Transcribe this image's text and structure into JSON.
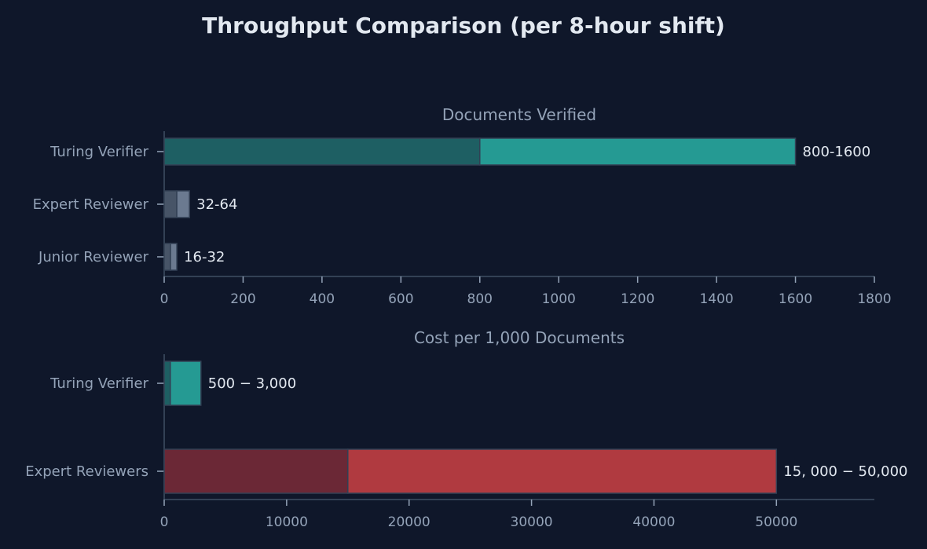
{
  "figure": {
    "title": "Throughput Comparison (per 8-hour shift)",
    "background": "#0f172a"
  },
  "chart_data": [
    {
      "type": "bar",
      "orientation": "horizontal",
      "title": "Documents Verified",
      "categories": [
        "Turing Verifier",
        "Expert Reviewer",
        "Junior Reviewer"
      ],
      "series": [
        {
          "name": "min",
          "values": [
            800,
            32,
            16
          ]
        },
        {
          "name": "max",
          "values": [
            1600,
            64,
            32
          ]
        }
      ],
      "labels": [
        "800-1600",
        "32-64",
        "16-32"
      ],
      "xlim": [
        0,
        1800
      ],
      "xticks": [
        0,
        200,
        400,
        600,
        800,
        1000,
        1200,
        1400,
        1600,
        1800
      ],
      "xlabel": "",
      "ylabel": "",
      "colors": {
        "Turing Verifier": {
          "min": "#1e5f63",
          "max": "#259a93"
        },
        "Expert Reviewer": {
          "min": "#475467",
          "max": "#6b7a90"
        },
        "Junior Reviewer": {
          "min": "#475467",
          "max": "#6b7a90"
        }
      },
      "grid": false,
      "legend": null
    },
    {
      "type": "bar",
      "orientation": "horizontal",
      "title": "Cost per 1,000 Documents",
      "categories": [
        "Turing Verifier",
        "Expert Reviewers"
      ],
      "series": [
        {
          "name": "min",
          "values": [
            500,
            15000
          ]
        },
        {
          "name": "max",
          "values": [
            3000,
            50000
          ]
        }
      ],
      "labels": [
        "500 − 3,000",
        "15, 000 − 50,000"
      ],
      "xlim": [
        0,
        58000
      ],
      "xticks": [
        0,
        10000,
        20000,
        30000,
        40000,
        50000
      ],
      "xlabel": "",
      "ylabel": "",
      "colors": {
        "Turing Verifier": {
          "min": "#1e5f63",
          "max": "#259a93"
        },
        "Expert Reviewers": {
          "min": "#6b2836",
          "max": "#b03a40"
        }
      },
      "grid": false,
      "legend": null
    }
  ]
}
